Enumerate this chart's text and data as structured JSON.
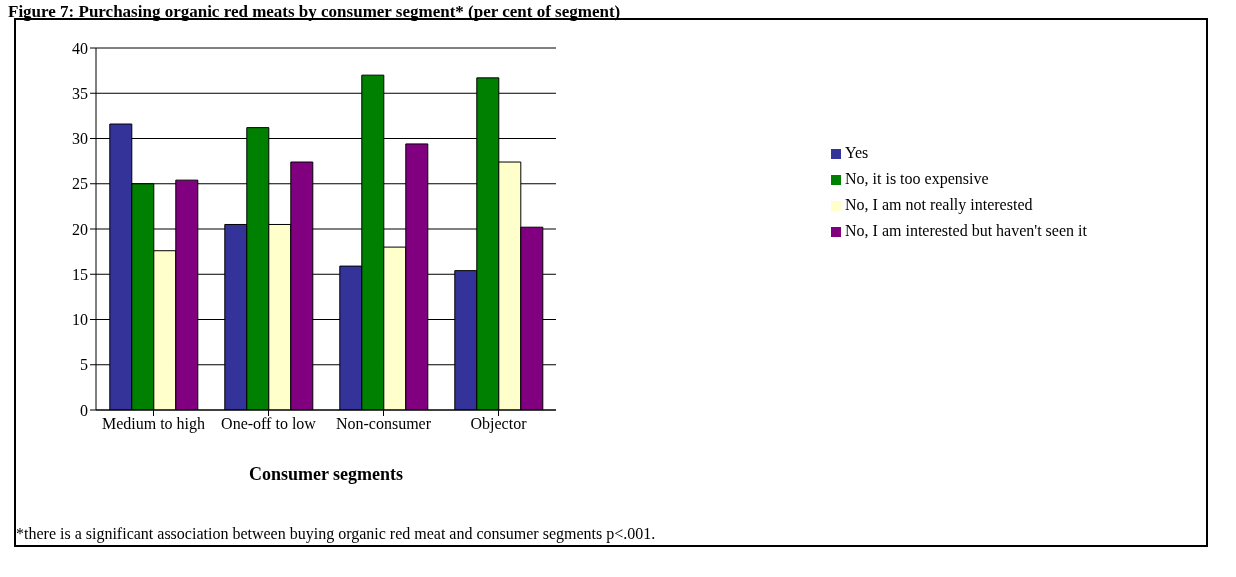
{
  "chart_data": {
    "type": "bar",
    "title": "Figure 7: Purchasing organic red meats by consumer segment* (per cent of segment)",
    "xlabel": "Consumer segments",
    "categories": [
      "Medium to high",
      "One-off to low",
      "Non-consumer",
      "Objector"
    ],
    "series": [
      {
        "name": "Yes",
        "color": "#333399",
        "values": [
          31.6,
          20.5,
          15.9,
          15.4
        ]
      },
      {
        "name": "No, it is too expensive",
        "color": "#008000",
        "values": [
          25,
          31.2,
          37,
          36.7
        ]
      },
      {
        "name": "No, I am not really interested",
        "color": "#ffffcc",
        "values": [
          17.6,
          20.5,
          18,
          27.4
        ]
      },
      {
        "name": "No, I am interested but haven't seen it",
        "color": "#800080",
        "values": [
          25.4,
          27.4,
          29.4,
          20.2
        ]
      }
    ],
    "ylim": [
      0,
      40
    ],
    "yticks": [
      0,
      5,
      10,
      15,
      20,
      25,
      30,
      35,
      40
    ],
    "grid": "y",
    "legend": "right",
    "annotations": [
      "*there is a significant association between buying organic red meat and consumer segments p<.001."
    ]
  }
}
